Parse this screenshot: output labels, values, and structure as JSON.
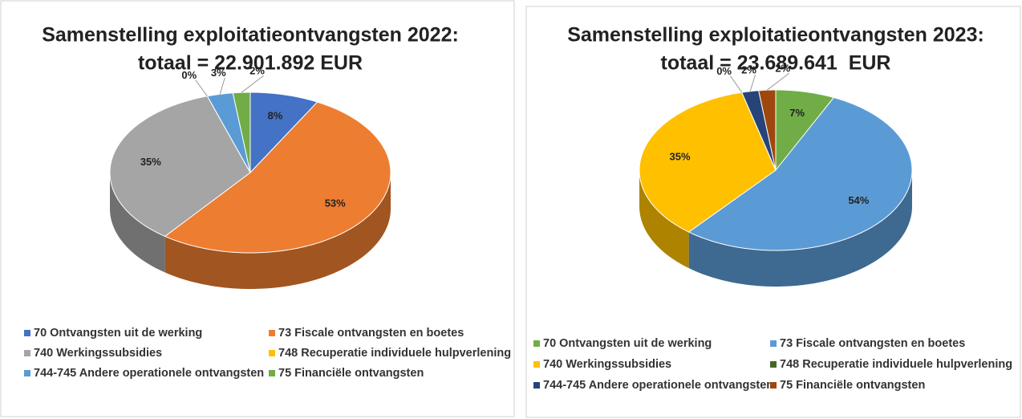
{
  "chart_data": [
    {
      "type": "pie3d",
      "title": "Samenstelling exploitatieontvangsten 2022:",
      "subtitle": "totaal = 22.901.892 EUR",
      "categories": [
        "70 Ontvangsten uit de werking",
        "73 Fiscale ontvangsten en boetes",
        "740 Werkingssubsidies",
        "748 Recuperatie individuele hulpverlening",
        "744-745 Andere operationele ontvangsten",
        "75 Financiële ontvangsten"
      ],
      "values": [
        8,
        53,
        35,
        0,
        3,
        2
      ],
      "value_labels": [
        "8%",
        "53%",
        "35%",
        "0%",
        "3%",
        "2%"
      ],
      "colors": [
        "#4472c4",
        "#ed7d31",
        "#a5a5a5",
        "#ffc000",
        "#5b9bd5",
        "#70ad47"
      ]
    },
    {
      "type": "pie3d",
      "title": "Samenstelling exploitatieontvangsten 2023:",
      "subtitle": "totaal = 23.689.641  EUR",
      "categories": [
        "70 Ontvangsten uit de werking",
        "73 Fiscale ontvangsten en boetes",
        "740 Werkingssubsidies",
        "748 Recuperatie individuele hulpverlening",
        "744-745 Andere operationele ontvangsten",
        "75 Financiële ontvangsten"
      ],
      "values": [
        7,
        54,
        35,
        0,
        2,
        2
      ],
      "value_labels": [
        "7%",
        "54%",
        "35%",
        "0%",
        "2%",
        "2%"
      ],
      "colors": [
        "#70ad47",
        "#5b9bd5",
        "#ffc000",
        "#43682b",
        "#264478",
        "#9e480e"
      ]
    }
  ]
}
